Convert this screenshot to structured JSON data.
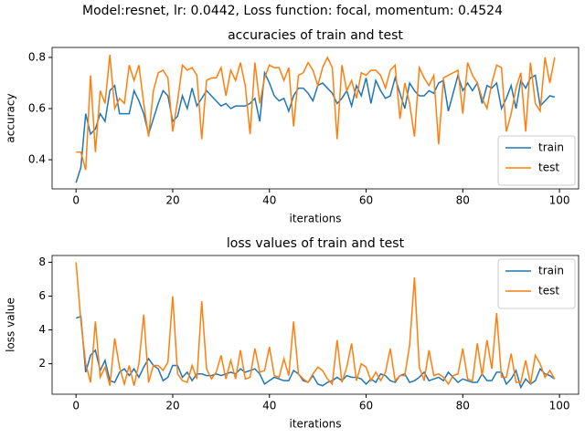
{
  "title": "Model:resnet, lr: 0.0442, Loss function: focal, momentum: 0.4524",
  "chart_data": [
    {
      "type": "line",
      "title": "accuracies of train and test",
      "xlabel": "iterations",
      "ylabel": "accuracy",
      "x": [
        0,
        1,
        2,
        3,
        4,
        5,
        6,
        7,
        8,
        9,
        10,
        11,
        12,
        13,
        14,
        15,
        16,
        17,
        18,
        19,
        20,
        21,
        22,
        23,
        24,
        25,
        26,
        27,
        28,
        29,
        30,
        31,
        32,
        33,
        34,
        35,
        36,
        37,
        38,
        39,
        40,
        41,
        42,
        43,
        44,
        45,
        46,
        47,
        48,
        49,
        50,
        51,
        52,
        53,
        54,
        55,
        56,
        57,
        58,
        59,
        60,
        61,
        62,
        63,
        64,
        65,
        66,
        67,
        68,
        69,
        70,
        71,
        72,
        73,
        74,
        75,
        76,
        77,
        78,
        79,
        80,
        81,
        82,
        83,
        84,
        85,
        86,
        87,
        88,
        89,
        90,
        91,
        92,
        93,
        94,
        95,
        96,
        97,
        98,
        99
      ],
      "xlim": [
        -4.95,
        103.95
      ],
      "xticks": [
        0,
        20,
        40,
        60,
        80,
        100
      ],
      "ylim": [
        0.286,
        0.839
      ],
      "yticks": [
        0.4,
        0.6,
        0.8
      ],
      "legend": "lower right",
      "series": [
        {
          "name": "train",
          "color": "#1f77b4",
          "values": [
            0.31,
            0.37,
            0.58,
            0.5,
            0.52,
            0.58,
            0.55,
            0.67,
            0.69,
            0.58,
            0.58,
            0.58,
            0.67,
            0.63,
            0.58,
            0.5,
            0.56,
            0.62,
            0.67,
            0.65,
            0.55,
            0.57,
            0.65,
            0.6,
            0.68,
            0.61,
            0.64,
            0.67,
            0.65,
            0.63,
            0.61,
            0.62,
            0.6,
            0.61,
            0.61,
            0.61,
            0.62,
            0.64,
            0.55,
            0.74,
            0.7,
            0.65,
            0.63,
            0.64,
            0.59,
            0.65,
            0.68,
            0.68,
            0.66,
            0.63,
            0.69,
            0.7,
            0.68,
            0.66,
            0.62,
            0.64,
            0.67,
            0.61,
            0.69,
            0.65,
            0.72,
            0.62,
            0.71,
            0.67,
            0.64,
            0.65,
            0.72,
            0.66,
            0.6,
            0.7,
            0.67,
            0.65,
            0.65,
            0.67,
            0.66,
            0.7,
            0.71,
            0.59,
            0.66,
            0.73,
            0.67,
            0.7,
            0.67,
            0.7,
            0.62,
            0.69,
            0.68,
            0.7,
            0.6,
            0.64,
            0.69,
            0.6,
            0.71,
            0.68,
            0.72,
            0.73,
            0.61,
            0.63,
            0.65,
            0.645
          ]
        },
        {
          "name": "test",
          "color": "#ff7f0e",
          "values": [
            0.43,
            0.43,
            0.36,
            0.73,
            0.43,
            0.67,
            0.62,
            0.81,
            0.6,
            0.64,
            0.62,
            0.77,
            0.71,
            0.77,
            0.62,
            0.49,
            0.67,
            0.74,
            0.75,
            0.72,
            0.51,
            0.63,
            0.77,
            0.75,
            0.76,
            0.73,
            0.48,
            0.71,
            0.72,
            0.72,
            0.76,
            0.65,
            0.75,
            0.71,
            0.78,
            0.69,
            0.5,
            0.78,
            0.62,
            0.72,
            0.77,
            0.76,
            0.76,
            0.71,
            0.76,
            0.53,
            0.73,
            0.74,
            0.78,
            0.75,
            0.69,
            0.76,
            0.8,
            0.76,
            0.48,
            0.77,
            0.67,
            0.71,
            0.64,
            0.74,
            0.73,
            0.75,
            0.75,
            0.73,
            0.68,
            0.75,
            0.77,
            0.56,
            0.7,
            0.62,
            0.49,
            0.76,
            0.72,
            0.69,
            0.73,
            0.46,
            0.72,
            0.73,
            0.74,
            0.75,
            0.58,
            0.78,
            0.73,
            0.7,
            0.64,
            0.6,
            0.7,
            0.77,
            0.76,
            0.51,
            0.58,
            0.68,
            0.74,
            0.51,
            0.78,
            0.62,
            0.59,
            0.8,
            0.7,
            0.8
          ]
        }
      ]
    },
    {
      "type": "line",
      "title": "loss values of train and test",
      "xlabel": "iterations",
      "ylabel": "loss value",
      "x": [
        0,
        1,
        2,
        3,
        4,
        5,
        6,
        7,
        8,
        9,
        10,
        11,
        12,
        13,
        14,
        15,
        16,
        17,
        18,
        19,
        20,
        21,
        22,
        23,
        24,
        25,
        26,
        27,
        28,
        29,
        30,
        31,
        32,
        33,
        34,
        35,
        36,
        37,
        38,
        39,
        40,
        41,
        42,
        43,
        44,
        45,
        46,
        47,
        48,
        49,
        50,
        51,
        52,
        53,
        54,
        55,
        56,
        57,
        58,
        59,
        60,
        61,
        62,
        63,
        64,
        65,
        66,
        67,
        68,
        69,
        70,
        71,
        72,
        73,
        74,
        75,
        76,
        77,
        78,
        79,
        80,
        81,
        82,
        83,
        84,
        85,
        86,
        87,
        88,
        89,
        90,
        91,
        92,
        93,
        94,
        95,
        96,
        97,
        98,
        99
      ],
      "xlim": [
        -4.95,
        103.95
      ],
      "xticks": [
        0,
        20,
        40,
        60,
        80,
        100
      ],
      "ylim": [
        0.2,
        8.4
      ],
      "yticks": [
        2,
        4,
        6,
        8
      ],
      "legend": "upper right",
      "series": [
        {
          "name": "train",
          "color": "#1f77b4",
          "values": [
            4.7,
            4.8,
            1.5,
            2.5,
            2.8,
            1.6,
            2.2,
            1.0,
            0.9,
            1.5,
            1.7,
            1.3,
            1.7,
            1.2,
            1.8,
            2.3,
            1.9,
            1.7,
            1.0,
            1.2,
            1.9,
            1.9,
            1.2,
            1.5,
            1.0,
            1.4,
            1.4,
            1.3,
            1.3,
            1.4,
            1.3,
            1.4,
            1.5,
            1.4,
            1.7,
            1.5,
            1.6,
            1.7,
            1.4,
            0.8,
            1.0,
            1.2,
            1.1,
            1.0,
            1.0,
            1.6,
            1.4,
            1.0,
            0.9,
            1.3,
            0.8,
            0.7,
            0.9,
            1.0,
            1.2,
            1.0,
            1.3,
            1.2,
            1.2,
            1.1,
            0.8,
            1.1,
            0.9,
            1.4,
            1.3,
            1.0,
            0.9,
            1.3,
            1.4,
            0.9,
            1.0,
            1.2,
            1.5,
            1.0,
            1.1,
            1.2,
            1.0,
            1.5,
            1.2,
            0.9,
            1.1,
            1.0,
            0.9,
            0.9,
            1.4,
            1.0,
            1.0,
            1.5,
            1.5,
            0.8,
            1.1,
            1.6,
            0.6,
            1.1,
            0.8,
            1.0,
            1.7,
            1.4,
            1.3,
            1.1
          ]
        },
        {
          "name": "test",
          "color": "#ff7f0e",
          "values": [
            8.0,
            4.5,
            2.0,
            0.9,
            4.5,
            1.2,
            1.8,
            0.7,
            3.5,
            1.8,
            0.8,
            1.9,
            0.7,
            2.0,
            4.9,
            0.9,
            1.9,
            1.9,
            1.6,
            2.1,
            6.0,
            1.4,
            1.0,
            0.9,
            1.9,
            1.1,
            5.7,
            1.7,
            1.1,
            1.5,
            2.5,
            1.1,
            2.2,
            1.1,
            2.8,
            1.1,
            1.2,
            2.9,
            1.5,
            1.6,
            3.0,
            1.3,
            1.2,
            2.3,
            1.3,
            4.5,
            1.4,
            1.1,
            0.9,
            1.4,
            1.8,
            1.6,
            1.1,
            0.8,
            3.4,
            0.9,
            1.8,
            3.2,
            1.0,
            2.0,
            1.8,
            1.0,
            1.5,
            1.0,
            1.5,
            2.9,
            1.0,
            1.3,
            1.3,
            3.1,
            7.1,
            1.8,
            1.0,
            2.8,
            1.3,
            1.4,
            1.2,
            0.8,
            1.3,
            1.4,
            2.9,
            1.1,
            1.0,
            3.2,
            1.3,
            3.4,
            1.7,
            5.0,
            1.2,
            1.2,
            2.6,
            0.9,
            0.9,
            2.2,
            0.8,
            2.5,
            2.0,
            1.2,
            1.6,
            1.1
          ]
        }
      ]
    }
  ]
}
